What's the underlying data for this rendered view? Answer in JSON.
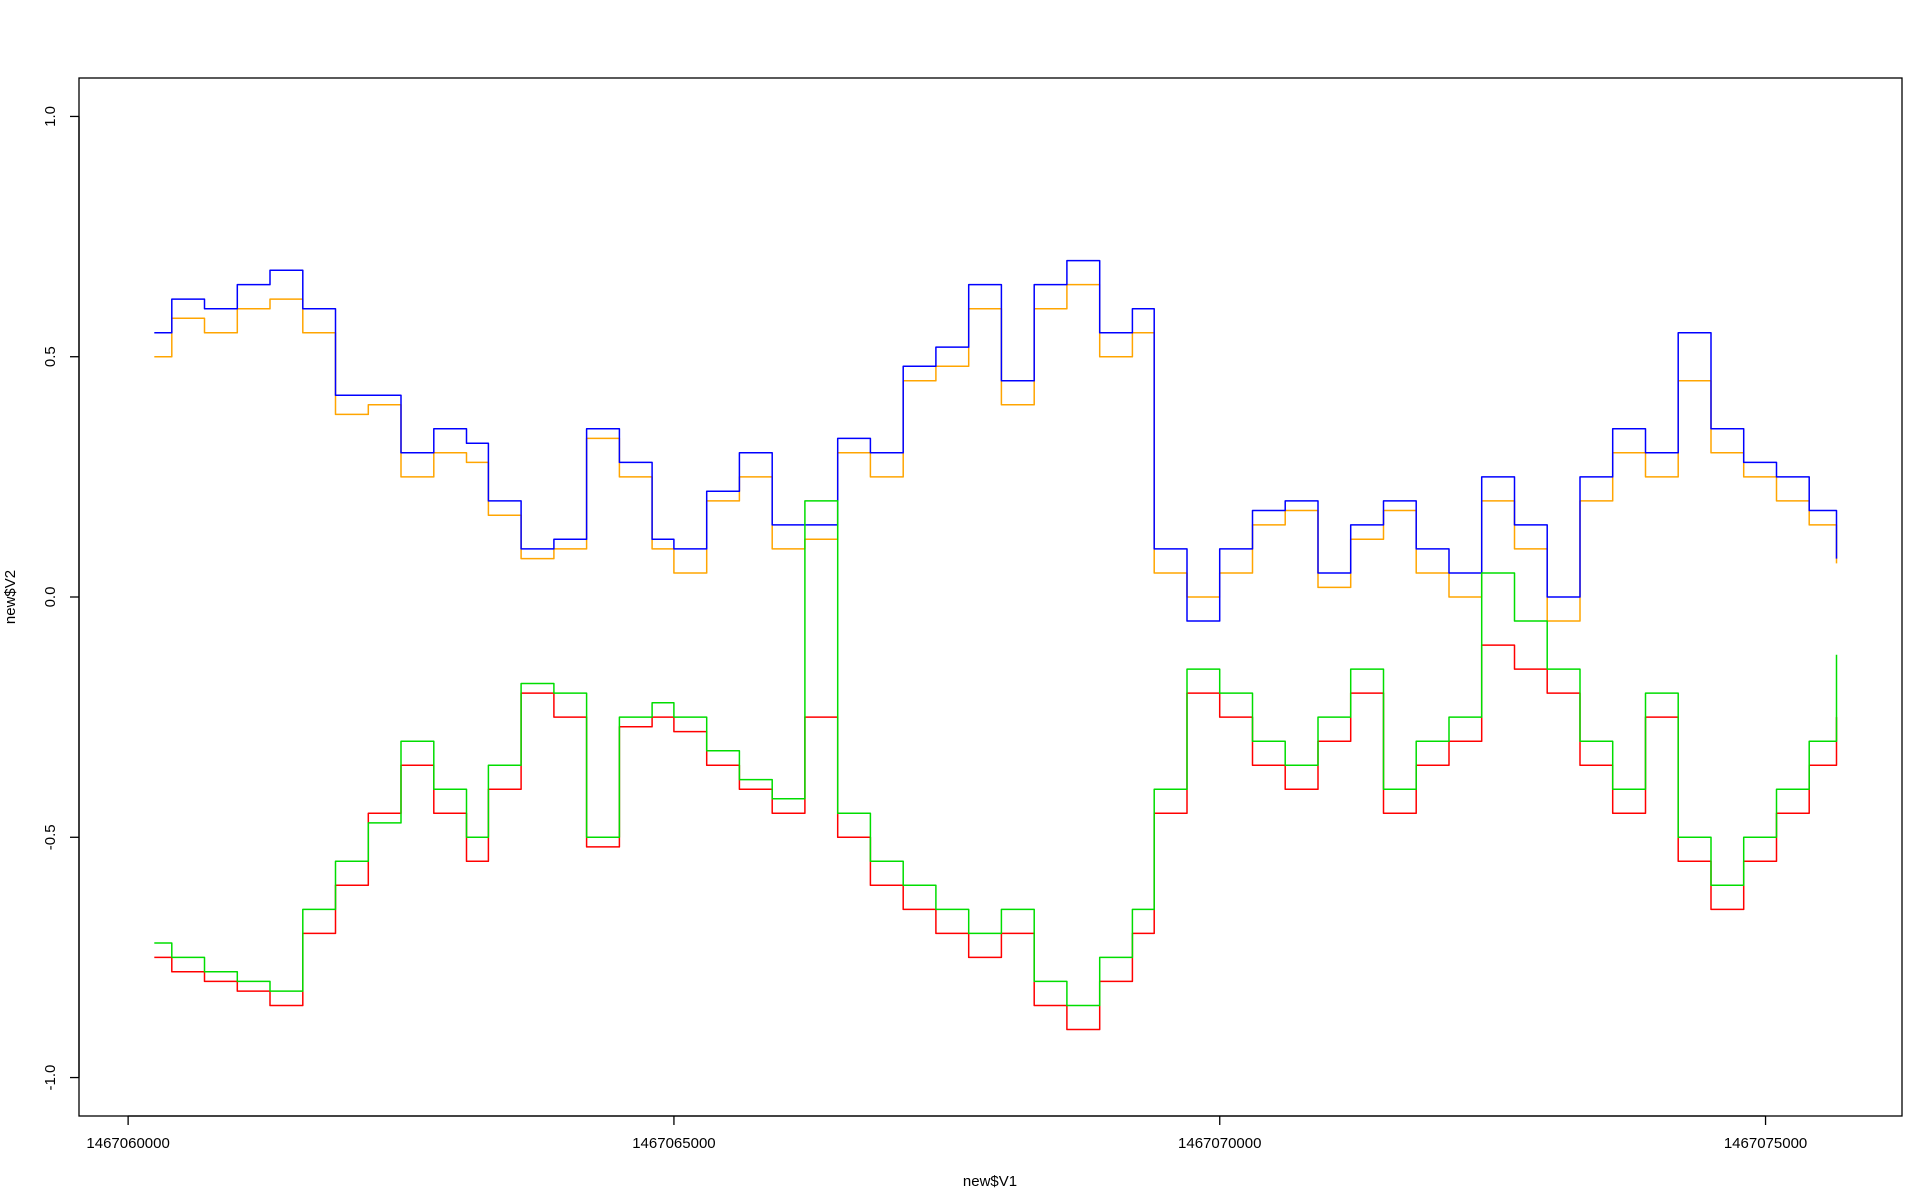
{
  "chart_data": {
    "type": "line",
    "title": "",
    "xlabel": "new$V1",
    "ylabel": "new$V2",
    "xlim": [
      1467059550,
      1467076250
    ],
    "ylim": [
      -1.08,
      1.08
    ],
    "x_ticks": [
      {
        "value": 1467060000,
        "label": "1467060000"
      },
      {
        "value": 1467065000,
        "label": "1467065000"
      },
      {
        "value": 1467070000,
        "label": "1467070000"
      },
      {
        "value": 1467075000,
        "label": "1467075000"
      }
    ],
    "y_ticks": [
      {
        "value": -1.0,
        "label": "-1.0"
      },
      {
        "value": -0.5,
        "label": "-0.5"
      },
      {
        "value": 0.0,
        "label": "0.0"
      },
      {
        "value": 0.5,
        "label": "0.5"
      },
      {
        "value": 1.0,
        "label": "1.0"
      }
    ],
    "grid": false,
    "legend": "none",
    "series": [
      {
        "color": "#FFA500",
        "x": [
          1467060240,
          1467060400,
          1467060700,
          1467061000,
          1467061300,
          1467061600,
          1467061900,
          1467062200,
          1467062500,
          1467062800,
          1467063100,
          1467063300,
          1467063600,
          1467063900,
          1467064200,
          1467064500,
          1467064800,
          1467065000,
          1467065300,
          1467065600,
          1467065900,
          1467066200,
          1467066500,
          1467066800,
          1467067100,
          1467067400,
          1467067700,
          1467068000,
          1467068300,
          1467068600,
          1467068900,
          1467069200,
          1467069400,
          1467069700,
          1467070000,
          1467070300,
          1467070600,
          1467070900,
          1467071200,
          1467071500,
          1467071800,
          1467072100,
          1467072400,
          1467072700,
          1467073000,
          1467073300,
          1467073600,
          1467073900,
          1467074200,
          1467074500,
          1467074800,
          1467075100,
          1467075400,
          1467075650
        ],
        "y": [
          0.5,
          0.58,
          0.55,
          0.6,
          0.62,
          0.55,
          0.38,
          0.4,
          0.25,
          0.3,
          0.28,
          0.17,
          0.08,
          0.1,
          0.33,
          0.25,
          0.1,
          0.05,
          0.2,
          0.25,
          0.1,
          0.12,
          0.3,
          0.25,
          0.45,
          0.48,
          0.6,
          0.4,
          0.6,
          0.65,
          0.5,
          0.55,
          0.05,
          0.0,
          0.05,
          0.15,
          0.18,
          0.02,
          0.12,
          0.18,
          0.05,
          0.0,
          0.2,
          0.1,
          -0.05,
          0.2,
          0.3,
          0.25,
          0.45,
          0.3,
          0.25,
          0.2,
          0.15,
          0.07
        ]
      },
      {
        "color": "#0000FF",
        "x": [
          1467060240,
          1467060400,
          1467060700,
          1467061000,
          1467061300,
          1467061600,
          1467061900,
          1467062200,
          1467062500,
          1467062800,
          1467063100,
          1467063300,
          1467063600,
          1467063900,
          1467064200,
          1467064500,
          1467064800,
          1467065000,
          1467065300,
          1467065600,
          1467065900,
          1467066200,
          1467066500,
          1467066800,
          1467067100,
          1467067400,
          1467067700,
          1467068000,
          1467068300,
          1467068600,
          1467068900,
          1467069200,
          1467069400,
          1467069700,
          1467070000,
          1467070300,
          1467070600,
          1467070900,
          1467071200,
          1467071500,
          1467071800,
          1467072100,
          1467072400,
          1467072700,
          1467073000,
          1467073300,
          1467073600,
          1467073900,
          1467074200,
          1467074500,
          1467074800,
          1467075100,
          1467075400,
          1467075650
        ],
        "y": [
          0.55,
          0.62,
          0.6,
          0.65,
          0.68,
          0.6,
          0.42,
          0.42,
          0.3,
          0.35,
          0.32,
          0.2,
          0.1,
          0.12,
          0.35,
          0.28,
          0.12,
          0.1,
          0.22,
          0.3,
          0.15,
          0.15,
          0.33,
          0.3,
          0.48,
          0.52,
          0.65,
          0.45,
          0.65,
          0.7,
          0.55,
          0.6,
          0.1,
          -0.05,
          0.1,
          0.18,
          0.2,
          0.05,
          0.15,
          0.2,
          0.1,
          0.05,
          0.25,
          0.15,
          0.0,
          0.25,
          0.35,
          0.3,
          0.55,
          0.35,
          0.28,
          0.25,
          0.18,
          0.08
        ]
      },
      {
        "color": "#FF0000",
        "x": [
          1467060240,
          1467060400,
          1467060700,
          1467061000,
          1467061300,
          1467061600,
          1467061900,
          1467062200,
          1467062500,
          1467062800,
          1467063100,
          1467063300,
          1467063600,
          1467063900,
          1467064200,
          1467064500,
          1467064800,
          1467065000,
          1467065300,
          1467065600,
          1467065900,
          1467066200,
          1467066500,
          1467066800,
          1467067100,
          1467067400,
          1467067700,
          1467068000,
          1467068300,
          1467068600,
          1467068900,
          1467069200,
          1467069400,
          1467069700,
          1467070000,
          1467070300,
          1467070600,
          1467070900,
          1467071200,
          1467071500,
          1467071800,
          1467072100,
          1467072400,
          1467072700,
          1467073000,
          1467073300,
          1467073600,
          1467073900,
          1467074200,
          1467074500,
          1467074800,
          1467075100,
          1467075400,
          1467075650
        ],
        "y": [
          -0.75,
          -0.78,
          -0.8,
          -0.82,
          -0.85,
          -0.7,
          -0.6,
          -0.45,
          -0.35,
          -0.45,
          -0.55,
          -0.4,
          -0.2,
          -0.25,
          -0.52,
          -0.27,
          -0.25,
          -0.28,
          -0.35,
          -0.4,
          -0.45,
          -0.25,
          -0.5,
          -0.6,
          -0.65,
          -0.7,
          -0.75,
          -0.7,
          -0.85,
          -0.9,
          -0.8,
          -0.7,
          -0.45,
          -0.2,
          -0.25,
          -0.35,
          -0.4,
          -0.3,
          -0.2,
          -0.45,
          -0.35,
          -0.3,
          -0.1,
          -0.15,
          -0.2,
          -0.35,
          -0.45,
          -0.25,
          -0.55,
          -0.65,
          -0.55,
          -0.45,
          -0.35,
          -0.25
        ]
      },
      {
        "color": "#00DD00",
        "x": [
          1467060240,
          1467060400,
          1467060700,
          1467061000,
          1467061300,
          1467061600,
          1467061900,
          1467062200,
          1467062500,
          1467062800,
          1467063100,
          1467063300,
          1467063600,
          1467063900,
          1467064200,
          1467064500,
          1467064800,
          1467065000,
          1467065300,
          1467065600,
          1467065900,
          1467066200,
          1467066500,
          1467066800,
          1467067100,
          1467067400,
          1467067700,
          1467068000,
          1467068300,
          1467068600,
          1467068900,
          1467069200,
          1467069400,
          1467069700,
          1467070000,
          1467070300,
          1467070600,
          1467070900,
          1467071200,
          1467071500,
          1467071800,
          1467072100,
          1467072400,
          1467072700,
          1467073000,
          1467073300,
          1467073600,
          1467073900,
          1467074200,
          1467074500,
          1467074800,
          1467075100,
          1467075400,
          1467075650
        ],
        "y": [
          -0.72,
          -0.75,
          -0.78,
          -0.8,
          -0.82,
          -0.65,
          -0.55,
          -0.47,
          -0.3,
          -0.4,
          -0.5,
          -0.35,
          -0.18,
          -0.2,
          -0.5,
          -0.25,
          -0.22,
          -0.25,
          -0.32,
          -0.38,
          -0.42,
          0.2,
          -0.45,
          -0.55,
          -0.6,
          -0.65,
          -0.7,
          -0.65,
          -0.8,
          -0.85,
          -0.75,
          -0.65,
          -0.4,
          -0.15,
          -0.2,
          -0.3,
          -0.35,
          -0.25,
          -0.15,
          -0.4,
          -0.3,
          -0.25,
          0.05,
          -0.05,
          -0.15,
          -0.3,
          -0.4,
          -0.2,
          -0.5,
          -0.6,
          -0.5,
          -0.4,
          -0.3,
          -0.12
        ]
      }
    ]
  }
}
